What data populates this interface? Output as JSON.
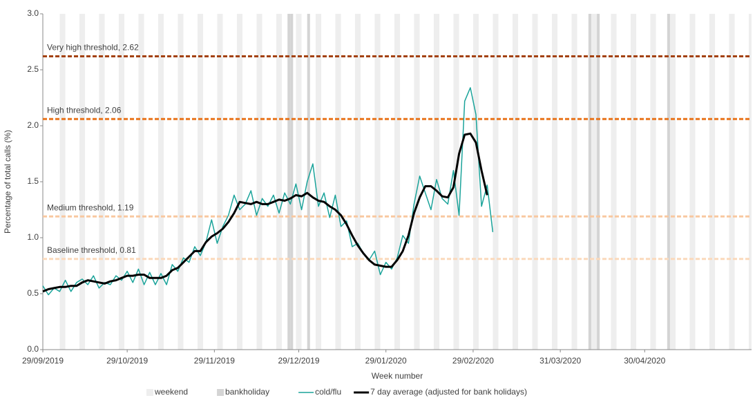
{
  "chart_data": {
    "type": "line",
    "x_label": "Week number",
    "y_label": "Percentage of total calls (%)",
    "xlim": [
      0,
      252
    ],
    "xticks": [
      {
        "value": 0,
        "label": "29/09/2019"
      },
      {
        "value": 30,
        "label": "29/10/2019"
      },
      {
        "value": 61,
        "label": "29/11/2019"
      },
      {
        "value": 91,
        "label": "29/12/2019"
      },
      {
        "value": 122,
        "label": "29/01/2020"
      },
      {
        "value": 153,
        "label": "29/02/2020"
      },
      {
        "value": 184,
        "label": "31/03/2020"
      },
      {
        "value": 214,
        "label": "30/04/2020"
      }
    ],
    "ylim": [
      0,
      3
    ],
    "yticks": [
      {
        "value": 0,
        "label": "0.0"
      },
      0.5,
      {
        "value": 1,
        "label": "1.0"
      },
      1.5,
      {
        "value": 2,
        "label": "2.0"
      },
      2.5,
      {
        "value": 3,
        "label": "3.0"
      }
    ],
    "bands": [
      {
        "name": "weekend",
        "color": "#eeeeee",
        "x": [
          6,
          7,
          13,
          14,
          20,
          21,
          27,
          28,
          34,
          35,
          41,
          42,
          48,
          49,
          55,
          56,
          62,
          63,
          69,
          70,
          76,
          77,
          83,
          84,
          90,
          91,
          97,
          98,
          104,
          105,
          111,
          112,
          118,
          119,
          125,
          126,
          132,
          133,
          139,
          140,
          146,
          147,
          153,
          154,
          160,
          161,
          167,
          168,
          174,
          175,
          181,
          182,
          188,
          189,
          195,
          196,
          202,
          203,
          209,
          210,
          216,
          217,
          223,
          224,
          230,
          231,
          237,
          238,
          244,
          245,
          251
        ]
      },
      {
        "name": "bankholiday",
        "color": "#d4d4d4",
        "x": [
          87,
          88,
          94,
          194,
          197,
          222
        ]
      }
    ],
    "thresholds": [
      {
        "label": "Very high threshold, 2.62",
        "value": 2.62,
        "color": "#a3410c"
      },
      {
        "label": "High threshold, 2.06",
        "value": 2.06,
        "color": "#e8731a"
      },
      {
        "label": "Medium threshold, 1.19",
        "value": 1.19,
        "color": "#f8c8a0"
      },
      {
        "label": "Baseline threshold, 0.81",
        "value": 0.81,
        "color": "#fbd9bb"
      }
    ],
    "x": [
      0,
      2,
      4,
      6,
      8,
      10,
      12,
      14,
      16,
      18,
      20,
      22,
      24,
      26,
      28,
      30,
      32,
      34,
      36,
      38,
      40,
      42,
      44,
      46,
      48,
      50,
      52,
      54,
      56,
      58,
      60,
      62,
      64,
      66,
      68,
      70,
      72,
      74,
      76,
      78,
      80,
      82,
      84,
      86,
      88,
      90,
      92,
      94,
      96,
      98,
      100,
      102,
      104,
      106,
      108,
      110,
      112,
      114,
      116,
      118,
      120,
      122,
      124,
      126,
      128,
      130,
      132,
      134,
      136,
      138,
      140,
      142,
      144,
      146,
      148,
      150,
      152,
      154,
      156,
      158,
      160
    ],
    "series": [
      {
        "name": "cold/flu",
        "color": "#1aa39a",
        "width": 1.5,
        "values": [
          0.57,
          0.49,
          0.55,
          0.52,
          0.62,
          0.52,
          0.6,
          0.63,
          0.58,
          0.66,
          0.55,
          0.6,
          0.58,
          0.66,
          0.62,
          0.7,
          0.6,
          0.72,
          0.58,
          0.69,
          0.58,
          0.68,
          0.58,
          0.76,
          0.7,
          0.82,
          0.78,
          0.92,
          0.84,
          0.96,
          1.16,
          0.95,
          1.1,
          1.2,
          1.38,
          1.25,
          1.3,
          1.42,
          1.2,
          1.35,
          1.28,
          1.38,
          1.22,
          1.4,
          1.3,
          1.48,
          1.25,
          1.5,
          1.66,
          1.28,
          1.4,
          1.18,
          1.38,
          1.1,
          1.15,
          0.92,
          0.95,
          0.86,
          0.8,
          0.88,
          0.67,
          0.78,
          0.72,
          0.82,
          1.02,
          0.95,
          1.3,
          1.55,
          1.4,
          1.25,
          1.52,
          1.35,
          1.3,
          1.6,
          1.2,
          2.22,
          2.34,
          2.1,
          1.28,
          1.47,
          1.05
        ]
      },
      {
        "name": "7 day average (adjusted for bank holidays)",
        "color": "#000000",
        "width": 3,
        "values": [
          0.52,
          0.54,
          0.55,
          0.56,
          0.56,
          0.57,
          0.57,
          0.6,
          0.62,
          0.61,
          0.6,
          0.59,
          0.61,
          0.62,
          0.64,
          0.66,
          0.66,
          0.67,
          0.67,
          0.64,
          0.64,
          0.64,
          0.66,
          0.71,
          0.73,
          0.78,
          0.83,
          0.88,
          0.88,
          0.96,
          1.01,
          1.04,
          1.08,
          1.14,
          1.22,
          1.32,
          1.31,
          1.3,
          1.32,
          1.3,
          1.3,
          1.32,
          1.34,
          1.33,
          1.35,
          1.38,
          1.37,
          1.4,
          1.36,
          1.33,
          1.32,
          1.28,
          1.25,
          1.2,
          1.12,
          1.02,
          0.93,
          0.86,
          0.8,
          0.76,
          0.75,
          0.74,
          0.74,
          0.8,
          0.88,
          1.02,
          1.22,
          1.36,
          1.46,
          1.46,
          1.42,
          1.37,
          1.36,
          1.45,
          1.75,
          1.92,
          1.93,
          1.85,
          1.6,
          1.38,
          null
        ]
      }
    ]
  }
}
